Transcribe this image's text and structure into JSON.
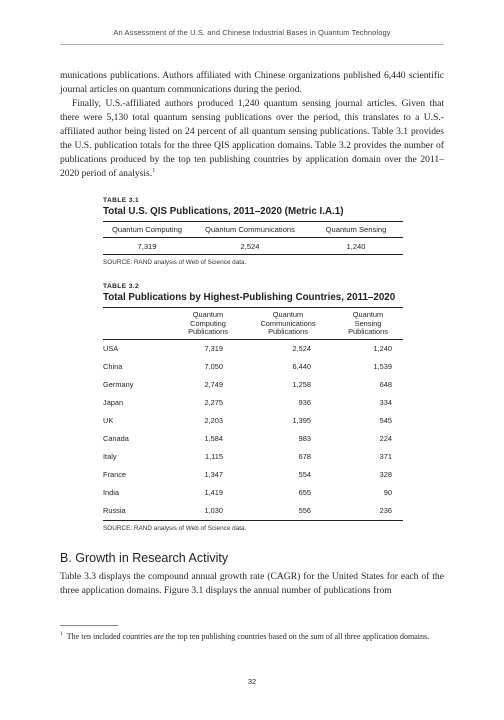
{
  "running_header": "An Assessment of the U.S. and Chinese Industrial Bases in Quantum Technology",
  "paragraphs": {
    "p1": "munications publications. Authors affiliated with Chinese organizations published 6,440 scientific journal articles on quantum communications during the period.",
    "p2": "Finally, U.S.-affiliated authors produced 1,240 quantum sensing journal articles. Given that there were 5,130 total quantum sensing publications over the period, this translates to a U.S.-affiliated author being listed on 24 percent of all quantum sensing publications. Table 3.1 provides the U.S. publication totals for the three QIS application domains. Table 3.2 provides the number of publications produced by the top ten publishing countries by application domain over the 2011–2020 period of analysis.",
    "p2_footnote_ref": "1",
    "p3": "Table 3.3 displays the compound annual growth rate (CAGR) for the United States for each of the three application domains. Figure 3.1 displays the annual number of publications from"
  },
  "table1": {
    "label": "TABLE 3.1",
    "title": "Total U.S. QIS Publications, 2011–2020 (Metric I.A.1)",
    "headers": [
      "Quantum Computing",
      "Quantum Communications",
      "Quantum Sensing"
    ],
    "values": [
      "7,319",
      "2,524",
      "1,240"
    ],
    "source": "SOURCE: RAND analysis of Web of Science data."
  },
  "table2": {
    "label": "TABLE 3.2",
    "title": "Total Publications by Highest-Publishing Countries, 2011–2020",
    "headers": [
      [
        "Quantum",
        "Computing",
        "Publications"
      ],
      [
        "Quantum",
        "Communications",
        "Publications"
      ],
      [
        "Quantum",
        "Sensing",
        "Publications"
      ]
    ],
    "rows": [
      {
        "country": "USA",
        "qc": "7,319",
        "qcomm": "2,524",
        "qs": "1,240"
      },
      {
        "country": "China",
        "qc": "7,050",
        "qcomm": "6,440",
        "qs": "1,539"
      },
      {
        "country": "Germany",
        "qc": "2,749",
        "qcomm": "1,258",
        "qs": "648"
      },
      {
        "country": "Japan",
        "qc": "2,275",
        "qcomm": "936",
        "qs": "334"
      },
      {
        "country": "UK",
        "qc": "2,203",
        "qcomm": "1,395",
        "qs": "545"
      },
      {
        "country": "Canada",
        "qc": "1,584",
        "qcomm": "983",
        "qs": "224"
      },
      {
        "country": "Italy",
        "qc": "1,115",
        "qcomm": "678",
        "qs": "371"
      },
      {
        "country": "France",
        "qc": "1,347",
        "qcomm": "554",
        "qs": "328"
      },
      {
        "country": "India",
        "qc": "1,419",
        "qcomm": "655",
        "qs": "90"
      },
      {
        "country": "Russia",
        "qc": "1,030",
        "qcomm": "556",
        "qs": "236"
      }
    ],
    "source": "SOURCE: RAND analysis of Web of Science data."
  },
  "section_heading": "B. Growth in Research Activity",
  "footnote": {
    "number": "1",
    "text": "The ten included countries are the top ten publishing countries based on the sum of all three application domains."
  },
  "page_number": "32"
}
